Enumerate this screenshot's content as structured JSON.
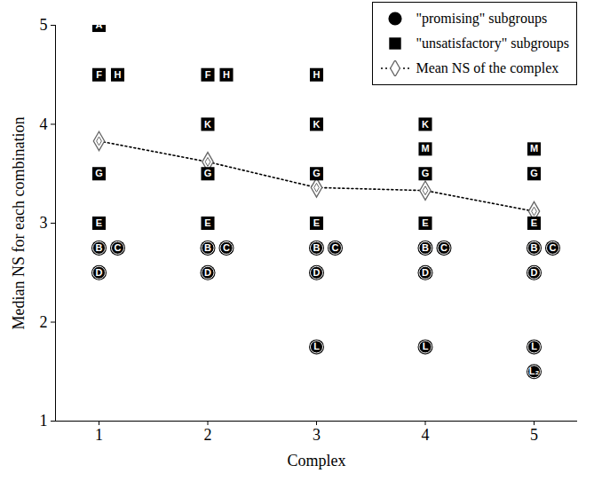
{
  "chart_data": {
    "type": "scatter",
    "x_label": "Complex",
    "y_label": "Median NS for each combination",
    "xlim": [
      0.6,
      5.4
    ],
    "xticks": [
      1,
      2,
      3,
      4,
      5
    ],
    "ylim": [
      1,
      5
    ],
    "yticks": [
      1,
      2,
      3,
      4,
      5
    ],
    "grid": false,
    "legend": "top-right",
    "series": [
      {
        "name": "\"promising\" subgroups",
        "type": "scatter",
        "marker": "circle",
        "color": "#000000",
        "x": [
          1,
          1,
          1,
          2,
          2,
          2,
          3,
          3,
          3,
          3,
          4,
          4,
          4,
          4,
          5,
          5,
          5,
          5,
          5
        ],
        "values": [
          2.75,
          2.75,
          2.5,
          2.75,
          2.75,
          2.5,
          2.75,
          2.75,
          2.5,
          1.75,
          2.75,
          2.75,
          2.5,
          1.75,
          2.75,
          2.75,
          2.5,
          1.75,
          1.5
        ],
        "labels": [
          "B",
          "C",
          "D",
          "B",
          "C",
          "D",
          "B",
          "C",
          "D",
          "L",
          "B",
          "C",
          "D",
          "L",
          "B",
          "C",
          "D",
          "L",
          "L₂"
        ]
      },
      {
        "name": "\"unsatisfactory\" subgroups",
        "type": "scatter",
        "marker": "square",
        "color": "#000000",
        "x": [
          1,
          1,
          1,
          1,
          1,
          2,
          2,
          2,
          2,
          2,
          3,
          3,
          3,
          3,
          4,
          4,
          4,
          4,
          5,
          5,
          5
        ],
        "values": [
          5,
          4.5,
          4.5,
          3.5,
          3,
          4.5,
          4.5,
          4,
          3.5,
          3,
          4.5,
          4,
          3.5,
          3,
          4,
          3.75,
          3.5,
          3,
          3.75,
          3.5,
          3
        ],
        "labels": [
          "A",
          "F",
          "H",
          "G",
          "E",
          "F",
          "H",
          "K",
          "G",
          "E",
          "H",
          "K",
          "G",
          "E",
          "K",
          "M",
          "G",
          "E",
          "M",
          "G",
          "E"
        ]
      },
      {
        "name": "Mean NS of the complex",
        "type": "line",
        "marker": "diamond",
        "line_style": "dotted",
        "color": "#000000",
        "x": [
          1,
          2,
          3,
          4,
          5
        ],
        "values": [
          3.83,
          3.62,
          3.36,
          3.33,
          3.12
        ]
      }
    ]
  }
}
